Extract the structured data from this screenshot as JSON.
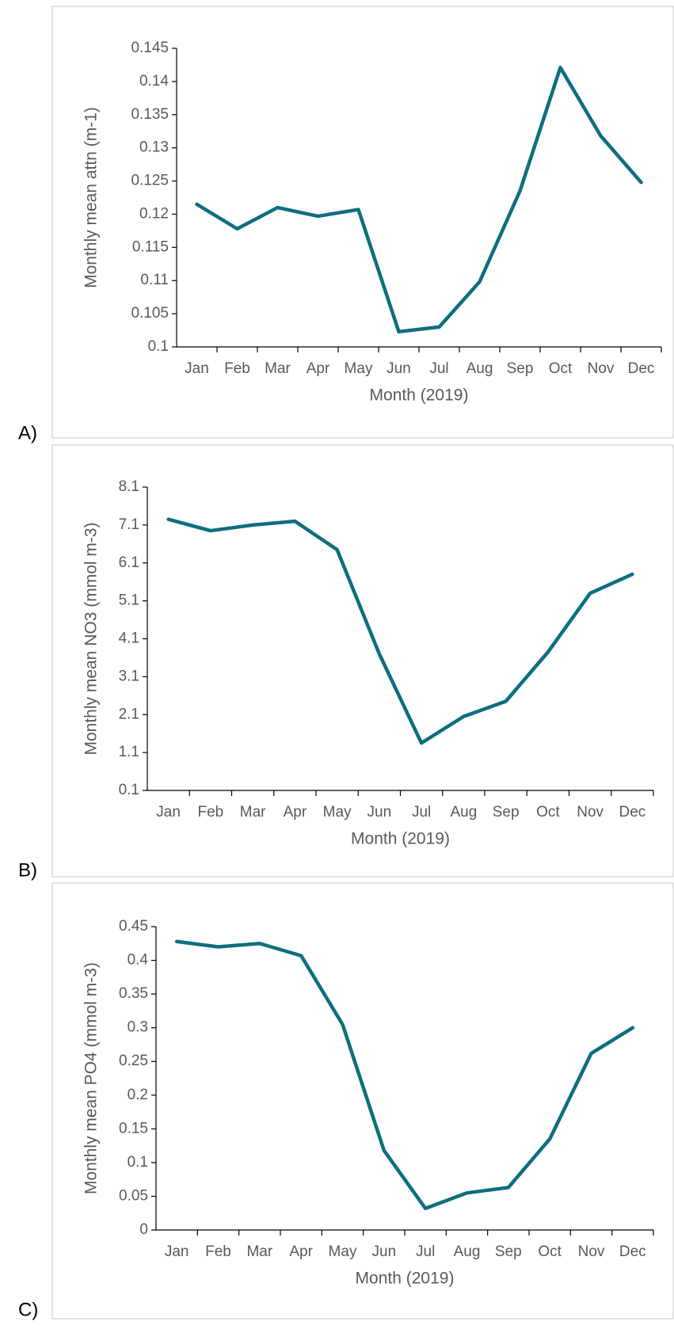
{
  "chart_data": [
    {
      "type": "line",
      "panel_label": "A)",
      "xlabel": "Month (2019)",
      "ylabel": "Monthly mean attn (m-1)",
      "categories": [
        "Jan",
        "Feb",
        "Mar",
        "Apr",
        "May",
        "Jun",
        "Jul",
        "Aug",
        "Sep",
        "Oct",
        "Nov",
        "Dec"
      ],
      "series": [
        {
          "color": "#0e6e7e",
          "values": [
            0.1215,
            0.1178,
            0.121,
            0.1197,
            0.1207,
            0.1023,
            0.103,
            0.1098,
            0.1235,
            0.1421,
            0.1318,
            0.1248
          ]
        }
      ],
      "ylim": [
        0.1,
        0.145
      ],
      "yticks": [
        0.1,
        0.105,
        0.11,
        0.115,
        0.12,
        0.125,
        0.13,
        0.135,
        0.14,
        0.145
      ]
    },
    {
      "type": "line",
      "panel_label": "B)",
      "xlabel": "Month (2019)",
      "ylabel": "Monthly mean NO3 (mmol m-3)",
      "categories": [
        "Jan",
        "Feb",
        "Mar",
        "Apr",
        "May",
        "Jun",
        "Jul",
        "Aug",
        "Sep",
        "Oct",
        "Nov",
        "Dec"
      ],
      "series": [
        {
          "color": "#0e6e7e",
          "values": [
            7.25,
            6.95,
            7.1,
            7.2,
            6.45,
            3.7,
            1.35,
            2.05,
            2.45,
            3.75,
            5.3,
            5.8
          ]
        }
      ],
      "ylim": [
        0.1,
        8.1
      ],
      "yticks": [
        0.1,
        1.1,
        2.1,
        3.1,
        4.1,
        5.1,
        6.1,
        7.1,
        8.1
      ]
    },
    {
      "type": "line",
      "panel_label": "C)",
      "xlabel": "Month (2019)",
      "ylabel": "Monthly mean PO4 (mmol m-3)",
      "categories": [
        "Jan",
        "Feb",
        "Mar",
        "Apr",
        "May",
        "Jun",
        "Jul",
        "Aug",
        "Sep",
        "Oct",
        "Nov",
        "Dec"
      ],
      "series": [
        {
          "color": "#0e6e7e",
          "values": [
            0.428,
            0.42,
            0.425,
            0.407,
            0.305,
            0.118,
            0.032,
            0.055,
            0.063,
            0.135,
            0.262,
            0.3
          ]
        }
      ],
      "ylim": [
        0,
        0.45
      ],
      "yticks": [
        0,
        0.05,
        0.1,
        0.15,
        0.2,
        0.25,
        0.3,
        0.35,
        0.4,
        0.45
      ]
    }
  ]
}
